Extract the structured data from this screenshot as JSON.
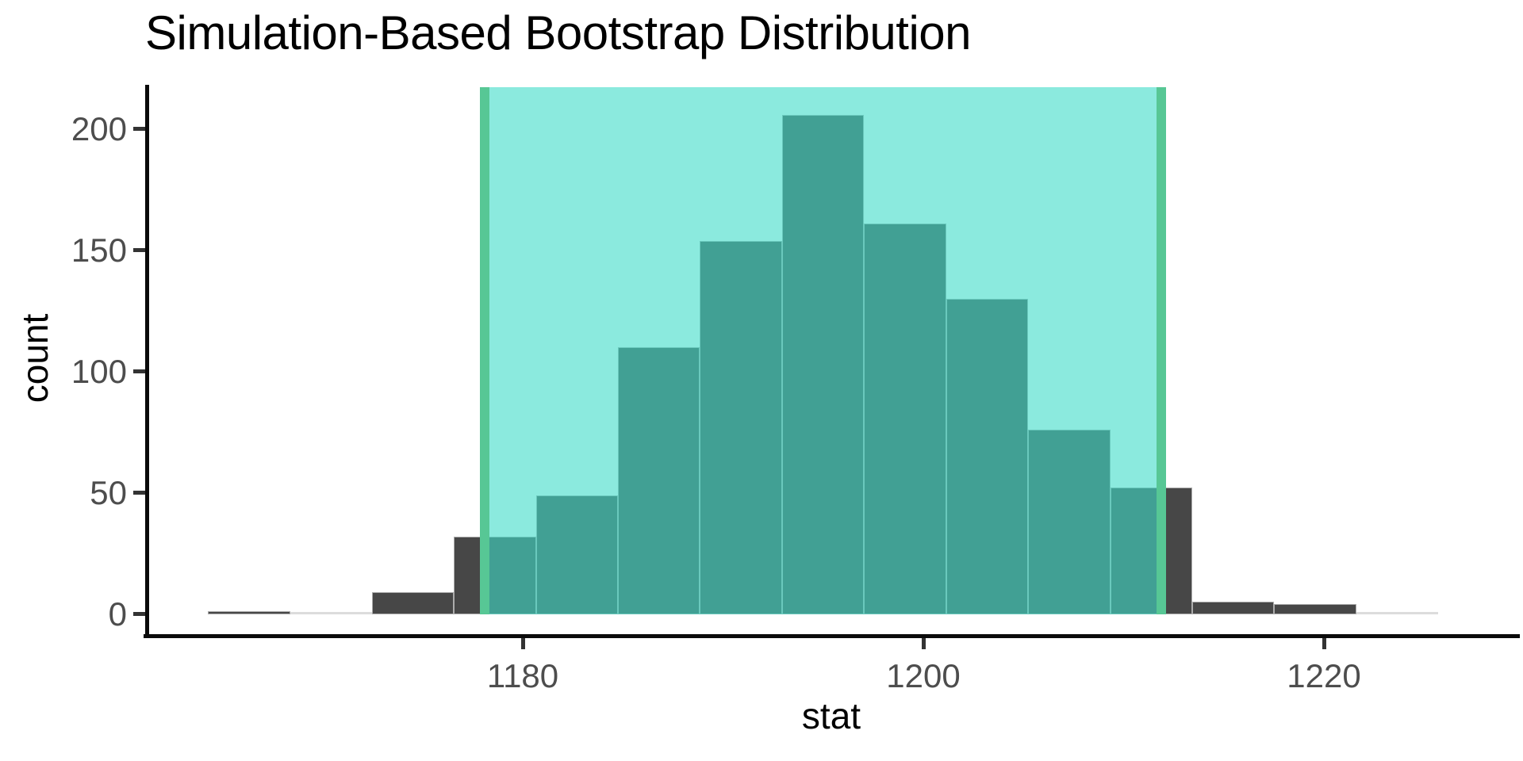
{
  "title": "Simulation-Based Bootstrap Distribution",
  "chart_data": {
    "type": "bar",
    "subtype": "histogram",
    "title": "Simulation-Based Bootstrap Distribution",
    "xlabel": "stat",
    "ylabel": "count",
    "x_ticks": [
      1180,
      1200,
      1220
    ],
    "y_ticks": [
      0,
      50,
      100,
      150,
      200
    ],
    "xlim": [
      1161.2,
      1229.8
    ],
    "ylim": [
      0,
      217
    ],
    "grid": "off",
    "legend": "none",
    "bin_start": 1164.28,
    "bin_width": 4.095,
    "bin_edges": [
      1164.28,
      1168.38,
      1172.47,
      1176.57,
      1180.66,
      1184.76,
      1188.85,
      1192.95,
      1197.04,
      1201.14,
      1205.23,
      1209.33,
      1213.42,
      1217.52,
      1221.61,
      1225.71
    ],
    "counts": [
      1,
      0,
      9,
      32,
      49,
      110,
      154,
      206,
      161,
      130,
      76,
      52,
      5,
      4,
      0
    ],
    "confidence_interval": {
      "lower": 1178.1,
      "upper": 1211.9
    },
    "colors": {
      "bar_fill": "#474747",
      "bar_border": "rgba(255,255,255,0.55)",
      "zero_bin_line": "#dcdcdc",
      "shade_fill": "rgba(62,220,200,0.6)",
      "shade_over_white": "#8beade",
      "shade_over_bar": "#41a094",
      "ci_line": "#57c795",
      "axis_line": "#0a0a0a",
      "axis_text": "#4d4d4d",
      "title_text": "#000000"
    }
  }
}
